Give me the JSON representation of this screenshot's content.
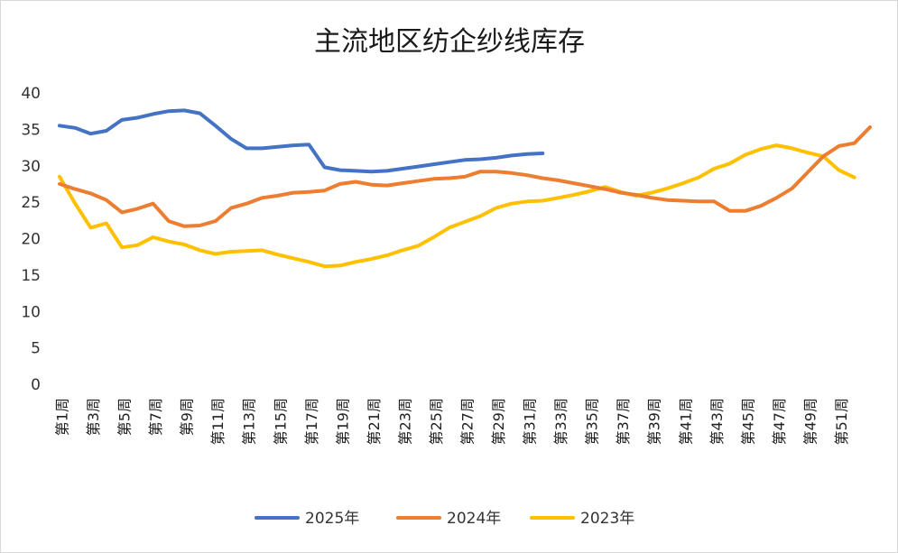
{
  "chart_data": {
    "type": "line",
    "title": "主流地区纺企纱线库存",
    "xlabel": "",
    "ylabel": "",
    "ylim": [
      0,
      40
    ],
    "y_ticks": [
      0,
      5,
      10,
      15,
      20,
      25,
      30,
      35,
      40
    ],
    "x_tick_labels": [
      "第1周",
      "第3周",
      "第5周",
      "第7周",
      "第9周",
      "第11周",
      "第13周",
      "第15周",
      "第17周",
      "第19周",
      "第21周",
      "第23周",
      "第25周",
      "第27周",
      "第29周",
      "第31周",
      "第33周",
      "第35周",
      "第37周",
      "第39周",
      "第41周",
      "第43周",
      "第45周",
      "第47周",
      "第49周",
      "第51周"
    ],
    "weeks": 53,
    "grid": false,
    "legend_position": "bottom",
    "series": [
      {
        "name": "2025年",
        "color": "#4472C4",
        "values": [
          35.5,
          35.2,
          34.4,
          34.8,
          36.3,
          36.6,
          37.1,
          37.5,
          37.6,
          37.2,
          35.5,
          33.7,
          32.4,
          32.4,
          32.6,
          32.8,
          32.9,
          29.8,
          29.4,
          29.3,
          29.2,
          29.3,
          29.6,
          29.9,
          30.2,
          30.5,
          30.8,
          30.9,
          31.1,
          31.4,
          31.6,
          31.7
        ]
      },
      {
        "name": "2024年",
        "color": "#ED7D31",
        "values": [
          27.5,
          26.8,
          26.2,
          25.3,
          23.6,
          24.1,
          24.8,
          22.4,
          21.7,
          21.8,
          22.4,
          24.2,
          24.8,
          25.6,
          25.9,
          26.3,
          26.4,
          26.6,
          27.5,
          27.8,
          27.4,
          27.3,
          27.6,
          27.9,
          28.2,
          28.3,
          28.5,
          29.2,
          29.2,
          29.0,
          28.7,
          28.3,
          28.0,
          27.6,
          27.2,
          26.8,
          26.3,
          26.0,
          25.6,
          25.3,
          25.2,
          25.1,
          25.1,
          23.8,
          23.8,
          24.5,
          25.6,
          26.9,
          29.1,
          31.3,
          32.7,
          33.1,
          35.3
        ]
      },
      {
        "name": "2023年",
        "color": "#FFC000",
        "values": [
          28.5,
          24.8,
          21.5,
          22.1,
          18.8,
          19.1,
          20.2,
          19.6,
          19.2,
          18.4,
          17.9,
          18.2,
          18.3,
          18.4,
          17.8,
          17.3,
          16.8,
          16.2,
          16.3,
          16.8,
          17.2,
          17.7,
          18.4,
          19.0,
          20.2,
          21.5,
          22.3,
          23.1,
          24.2,
          24.8,
          25.1,
          25.2,
          25.6,
          26.0,
          26.5,
          27.1,
          26.4,
          25.9,
          26.3,
          26.9,
          27.6,
          28.4,
          29.6,
          30.3,
          31.5,
          32.3,
          32.8,
          32.4,
          31.8,
          31.3,
          29.4,
          28.4
        ]
      }
    ]
  }
}
